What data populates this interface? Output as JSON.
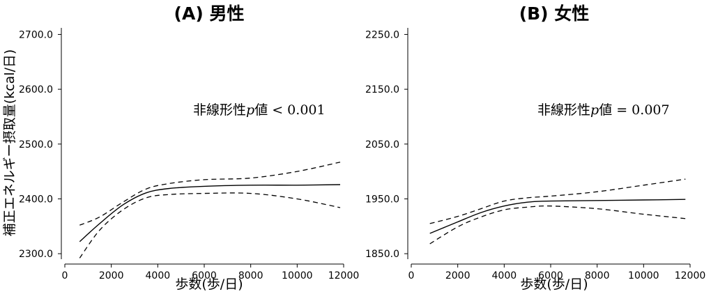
{
  "chart_data": [
    {
      "type": "line",
      "title": "(A) 男性",
      "xlabel": "歩数(歩/日)",
      "ylabel": "補正エネルギー摂取量(kcal/日)",
      "xlim": [
        0,
        12000
      ],
      "ylim": [
        2290,
        2712
      ],
      "xticks": [
        0,
        2000,
        4000,
        6000,
        8000,
        10000,
        12000
      ],
      "yticks": [
        2300.0,
        2400.0,
        2500.0,
        2600.0,
        2700.0
      ],
      "xtick_labels": [
        "0",
        "2000",
        "4000",
        "6000",
        "8000",
        "10000",
        "12000"
      ],
      "ytick_labels": [
        "2300.0",
        "2400.0",
        "2500.0",
        "2600.0",
        "2700.0"
      ],
      "annotation": {
        "prefix": "非線形性",
        "p": "p",
        "rest": "値 < 0.001"
      },
      "series": [
        {
          "style": "solid",
          "x": [
            640,
            1500,
            2500,
            3500,
            4500,
            6000,
            8000,
            10000,
            11850
          ],
          "y": [
            2322,
            2355,
            2389,
            2411,
            2419,
            2423,
            2425,
            2425,
            2426
          ]
        },
        {
          "style": "dashed",
          "x": [
            640,
            1500,
            2500,
            3500,
            4500,
            6000,
            8000,
            10000,
            11850
          ],
          "y": [
            2352,
            2367,
            2394,
            2418,
            2428,
            2435,
            2438,
            2450,
            2467
          ]
        },
        {
          "style": "dashed",
          "x": [
            640,
            1500,
            2500,
            3500,
            4500,
            6000,
            8000,
            10000,
            11850
          ],
          "y": [
            2292,
            2343,
            2380,
            2402,
            2408,
            2410,
            2410,
            2400,
            2384
          ]
        }
      ]
    },
    {
      "type": "line",
      "title": "(B) 女性",
      "xlabel": "歩数(歩/日)",
      "ylabel": "",
      "xlim": [
        0,
        12000
      ],
      "ylim": [
        1840,
        2262
      ],
      "xticks": [
        0,
        2000,
        4000,
        6000,
        8000,
        10000,
        12000
      ],
      "yticks": [
        1850.0,
        1950.0,
        2050.0,
        2150.0,
        2250.0
      ],
      "xtick_labels": [
        "0",
        "2000",
        "4000",
        "6000",
        "8000",
        "10000",
        "12000"
      ],
      "ytick_labels": [
        "1850.0",
        "1950.0",
        "2050.0",
        "2150.0",
        "2250.0"
      ],
      "annotation": {
        "prefix": "非線形性",
        "p": "p",
        "rest": "値 = 0.007"
      },
      "series": [
        {
          "style": "solid",
          "x": [
            800,
            2000,
            3000,
            4000,
            5000,
            6000,
            8000,
            10000,
            11800
          ],
          "y": [
            1887,
            1908,
            1925,
            1937,
            1944,
            1946,
            1947,
            1948,
            1949
          ]
        },
        {
          "style": "dashed",
          "x": [
            800,
            2000,
            3000,
            4000,
            5000,
            6000,
            8000,
            10000,
            11800
          ],
          "y": [
            1905,
            1918,
            1932,
            1946,
            1952,
            1955,
            1963,
            1975,
            1986
          ]
        },
        {
          "style": "dashed",
          "x": [
            800,
            2000,
            3000,
            4000,
            5000,
            6000,
            8000,
            10000,
            11800
          ],
          "y": [
            1868,
            1899,
            1917,
            1930,
            1935,
            1937,
            1932,
            1922,
            1914
          ]
        }
      ]
    }
  ]
}
